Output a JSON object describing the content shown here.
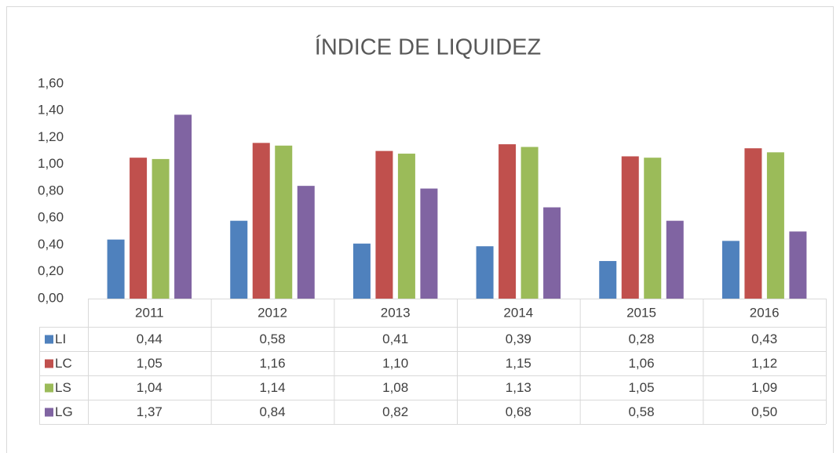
{
  "chart_data": {
    "type": "bar",
    "title": "ÍNDICE DE LIQUIDEZ",
    "categories": [
      "2011",
      "2012",
      "2013",
      "2014",
      "2015",
      "2016"
    ],
    "series": [
      {
        "name": "LI",
        "color": "#4f81bd",
        "values": [
          0.44,
          0.58,
          0.41,
          0.39,
          0.28,
          0.43
        ],
        "value_labels": [
          "0,44",
          "0,58",
          "0,41",
          "0,39",
          "0,28",
          "0,43"
        ]
      },
      {
        "name": "LC",
        "color": "#c0504d",
        "values": [
          1.05,
          1.16,
          1.1,
          1.15,
          1.06,
          1.12
        ],
        "value_labels": [
          "1,05",
          "1,16",
          "1,10",
          "1,15",
          "1,06",
          "1,12"
        ]
      },
      {
        "name": "LS",
        "color": "#9bbb59",
        "values": [
          1.04,
          1.14,
          1.08,
          1.13,
          1.05,
          1.09
        ],
        "value_labels": [
          "1,04",
          "1,14",
          "1,08",
          "1,13",
          "1,05",
          "1,09"
        ]
      },
      {
        "name": "LG",
        "color": "#8064a2",
        "values": [
          1.37,
          0.84,
          0.82,
          0.68,
          0.58,
          0.5
        ],
        "value_labels": [
          "1,37",
          "0,84",
          "0,82",
          "0,68",
          "0,58",
          "0,50"
        ]
      }
    ],
    "ylim": [
      0,
      1.6
    ],
    "yticks": [
      {
        "value": 0,
        "label": "0,00"
      },
      {
        "value": 0.2,
        "label": "0,20"
      },
      {
        "value": 0.4,
        "label": "0,40"
      },
      {
        "value": 0.6,
        "label": "0,60"
      },
      {
        "value": 0.8,
        "label": "0,80"
      },
      {
        "value": 1.0,
        "label": "1,00"
      },
      {
        "value": 1.2,
        "label": "1,20"
      },
      {
        "value": 1.4,
        "label": "1,40"
      },
      {
        "value": 1.6,
        "label": "1,60"
      }
    ],
    "grid": false
  }
}
